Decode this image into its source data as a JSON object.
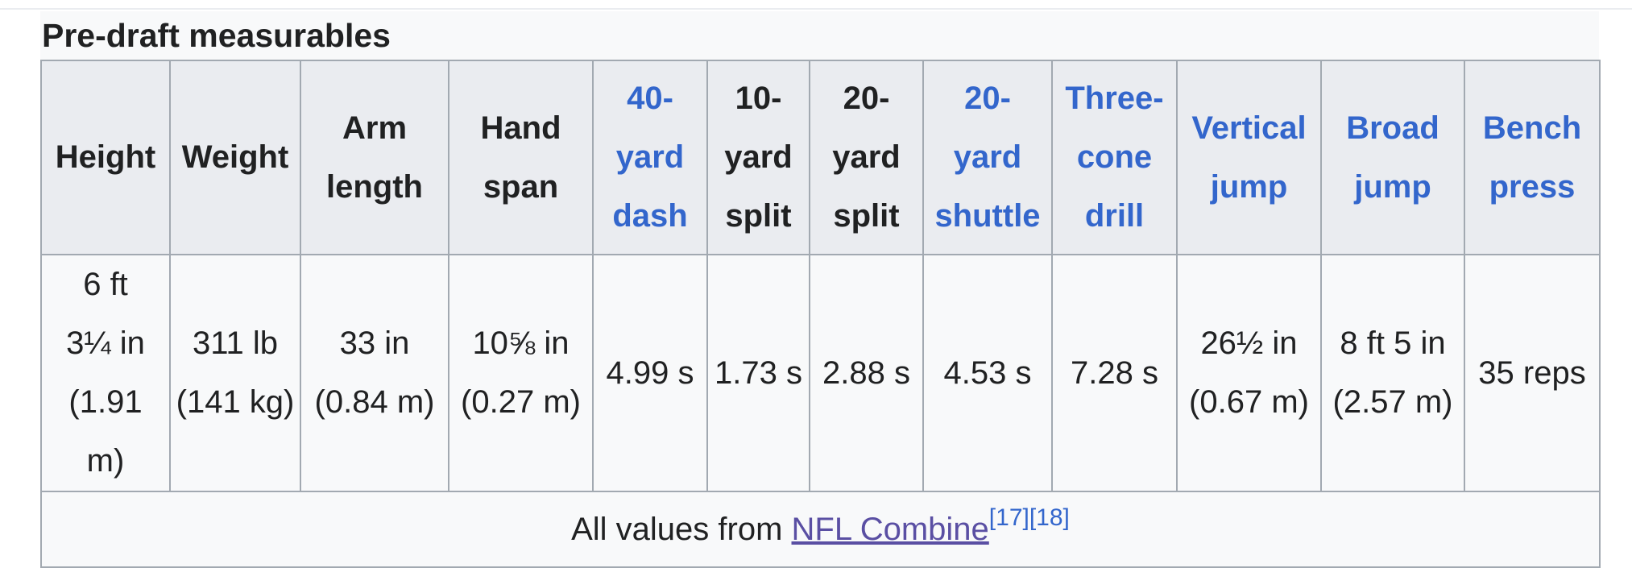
{
  "caption": "Pre-draft measurables",
  "headers": [
    {
      "l1": "Height",
      "l2": "",
      "l3": ""
    },
    {
      "l1": "Weight",
      "l2": "",
      "l3": ""
    },
    {
      "l1": "Arm",
      "l2": "length",
      "l3": ""
    },
    {
      "l1": "Hand",
      "l2": "span",
      "l3": ""
    },
    {
      "l1": "40-",
      "l2": "yard",
      "l3": "dash"
    },
    {
      "l1": "10-",
      "l2": "yard",
      "l3": "split"
    },
    {
      "l1": "20-",
      "l2": "yard",
      "l3": "split"
    },
    {
      "l1": "20-",
      "l2": "yard",
      "l3": "shuttle"
    },
    {
      "l1": "Three-",
      "l2": "cone",
      "l3": "drill"
    },
    {
      "l1": "Vertical",
      "l2": "jump",
      "l3": ""
    },
    {
      "l1": "Broad",
      "l2": "jump",
      "l3": ""
    },
    {
      "l1": "Bench",
      "l2": "press",
      "l3": ""
    }
  ],
  "values": [
    {
      "l1": "6 ft",
      "l2": "3¼ in",
      "l3": "(1.91 m)"
    },
    {
      "l1": "311 lb",
      "l2": "(141 kg)",
      "l3": ""
    },
    {
      "l1": "33 in",
      "l2": "(0.84 m)",
      "l3": ""
    },
    {
      "l1": "10⅝ in",
      "l2": "(0.27 m)",
      "l3": ""
    },
    {
      "l1": "4.99 s",
      "l2": "",
      "l3": ""
    },
    {
      "l1": "1.73 s",
      "l2": "",
      "l3": ""
    },
    {
      "l1": "2.88 s",
      "l2": "",
      "l3": ""
    },
    {
      "l1": "4.53 s",
      "l2": "",
      "l3": ""
    },
    {
      "l1": "7.28 s",
      "l2": "",
      "l3": ""
    },
    {
      "l1": "26½ in",
      "l2": "(0.67 m)",
      "l3": ""
    },
    {
      "l1": "8 ft 5 in",
      "l2": "(2.57 m)",
      "l3": ""
    },
    {
      "l1": "35 reps",
      "l2": "",
      "l3": ""
    }
  ],
  "footer": {
    "prefix": "All values from ",
    "link": "NFL Combine",
    "ref1": "[17]",
    "ref2": "[18]"
  },
  "colors": {
    "link": "#3366cc",
    "visited_link": "#5a4fa3",
    "header_bg": "#eaecf0",
    "cell_bg": "#f8f9fa",
    "border": "#a2a9b1"
  }
}
